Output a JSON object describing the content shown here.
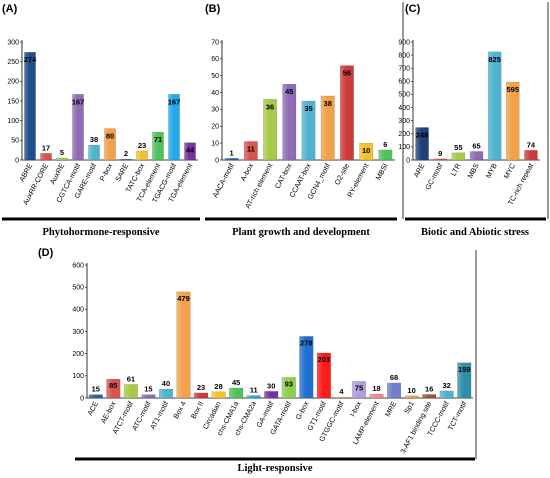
{
  "chart_data": [
    {
      "type": "bar",
      "panel": "(A)",
      "caption": "Phytohormone-responsive",
      "categories": [
        "ABRE",
        "AuxRR-CORE",
        "AuxRE",
        "CGTCA-motif",
        "GARE-motif",
        "P-box",
        "SARE",
        "TATC-box",
        "TCA-element",
        "TGACG-motif",
        "TGA-element"
      ],
      "values": [
        274,
        17,
        5,
        167,
        38,
        80,
        2,
        23,
        71,
        167,
        44
      ],
      "colors": [
        "#1f4e8c",
        "#d9534f",
        "#a6c94a",
        "#8e6bb5",
        "#4fb3d0",
        "#f2a04a",
        "#2a5ca8",
        "#f5c02a",
        "#4fc25a",
        "#23a8e8",
        "#7a2fa0"
      ],
      "ylim": [
        0,
        300
      ],
      "yticks": [
        0,
        50,
        100,
        150,
        200,
        250,
        300
      ]
    },
    {
      "type": "bar",
      "panel": "(B)",
      "caption": "Plant growth and development",
      "categories": [
        "AACA-motif",
        "A-box",
        "AT-rich element",
        "CAT-box",
        "CCAAT-box",
        "GCN4_motif",
        "O2-site",
        "RY-element",
        "MBSI"
      ],
      "values": [
        1,
        11,
        36,
        45,
        35,
        38,
        56,
        10,
        6
      ],
      "colors": [
        "#2a5ca8",
        "#d9534f",
        "#a6c94a",
        "#8e6bb5",
        "#4fb3d0",
        "#f2a04a",
        "#cc3a3a",
        "#f5c02a",
        "#4fc25a"
      ],
      "ylim": [
        0,
        70
      ],
      "yticks": [
        0,
        10,
        20,
        30,
        40,
        50,
        60,
        70
      ]
    },
    {
      "type": "bar",
      "panel": "(C)",
      "caption": "Biotic and Abiotic stress",
      "categories": [
        "ARE",
        "GC-motif",
        "LTR",
        "MBS",
        "MYB",
        "MYC",
        "TC-rich repeat"
      ],
      "values": [
        248,
        9,
        55,
        65,
        825,
        595,
        74
      ],
      "colors": [
        "#1f3f7a",
        "#d9534f",
        "#a6c94a",
        "#8e6bb5",
        "#4fb3d0",
        "#f2a04a",
        "#cc3a3a"
      ],
      "ylim": [
        0,
        900
      ],
      "yticks": [
        0,
        100,
        200,
        300,
        400,
        500,
        600,
        700,
        800,
        900
      ]
    },
    {
      "type": "bar",
      "panel": "(D)",
      "caption": "Light-responsive",
      "categories": [
        "ACE",
        "AE-box",
        "ATCT-motif",
        "ATC-motif",
        "AT1-motif",
        "Box 4",
        "Box II",
        "Circadian",
        "chs-CMA1a",
        "chs-CMA2a",
        "GA-motif",
        "GATA-motif",
        "G-box",
        "GT1-motif",
        "GTGGC-motif",
        "I-box",
        "LAMP-element",
        "MRE",
        "Sp1",
        "3-AF1 binding site",
        "TCCC-motif",
        "TCT-motif"
      ],
      "values": [
        15,
        85,
        61,
        15,
        40,
        479,
        23,
        28,
        45,
        11,
        30,
        93,
        278,
        203,
        4,
        75,
        18,
        68,
        10,
        16,
        32,
        159
      ],
      "colors": [
        "#2a5ca8",
        "#d9534f",
        "#a6c94a",
        "#8e6bb5",
        "#4fb3d0",
        "#f2a04a",
        "#cc3a3a",
        "#f5c02a",
        "#4fc25a",
        "#23a8e8",
        "#7a2fa0",
        "#8ccf4a",
        "#1f6fd0",
        "#ff1a1a",
        "#f2a04a",
        "#b39ddb",
        "#ef8a8a",
        "#6f7fc8",
        "#f2a04a",
        "#a0522d",
        "#4fb3d0",
        "#2f8fa8"
      ],
      "ylim": [
        0,
        600
      ],
      "yticks": [
        0,
        100,
        200,
        300,
        400,
        500,
        600
      ]
    }
  ]
}
